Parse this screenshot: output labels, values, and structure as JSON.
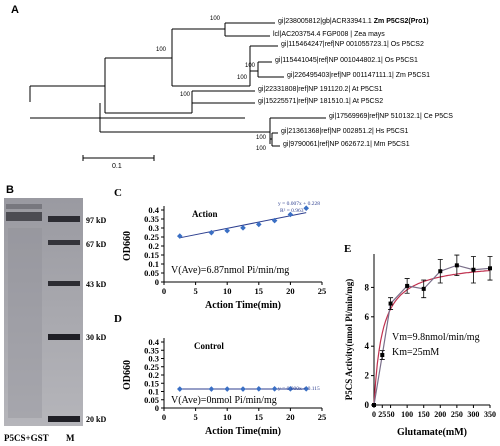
{
  "panel_a": {
    "letter": "A",
    "leaves": [
      {
        "id": "gi|238005812|gb|ACR33941.1 ",
        "name": "Zm P5CS2(Pro1)",
        "bold": true
      },
      {
        "id": "lcl|AC203754.4 FGP008 | ",
        "name": "Zea mays",
        "bold": false
      },
      {
        "id": "gi|115464247|ref|NP 001055723.1| ",
        "name": "Os P5CS2",
        "bold": false
      },
      {
        "id": "gi|115441045|ref|NP 001044802.1| ",
        "name": "Os P5CS1",
        "bold": false
      },
      {
        "id": "gi|226495403|ref|NP 001147111.1| ",
        "name": "Zm P5CS1",
        "bold": false
      },
      {
        "id": "gi|22331808|ref|NP 191120.2| ",
        "name": "At P5CS1",
        "bold": false
      },
      {
        "id": "gi|15225571|ref|NP 181510.1| ",
        "name": "At P5CS2",
        "bold": false
      },
      {
        "id": "gi|17569969|ref|NP 510132.1| ",
        "name": "Ce P5CS",
        "bold": false
      },
      {
        "id": "gi|21361368|ref|NP 002851.2| ",
        "name": "Hs P5CS1",
        "bold": false
      },
      {
        "id": "gi|9790061|ref|NP 062672.1| ",
        "name": "Mm P5CS1",
        "bold": false
      }
    ],
    "bootstraps": [
      "100",
      "100",
      "100",
      "100",
      "100",
      "100",
      "100"
    ],
    "scale_label": "0.1"
  },
  "panel_b": {
    "letter": "B",
    "markers": [
      "97 kD",
      "67 kD",
      "43 kD",
      "30 kD",
      "20 kD"
    ],
    "lane_labels": [
      "P5CS+GST",
      "M"
    ]
  },
  "chart_data": [
    {
      "panel": "C",
      "type": "scatter",
      "title": "Action",
      "xlabel": "Action Time(min)",
      "ylabel": "OD660",
      "xlim": [
        0,
        25
      ],
      "ylim": [
        0,
        0.4
      ],
      "xticks": [
        "0",
        "5",
        "10",
        "15",
        "20",
        "25"
      ],
      "yticks": [
        "0",
        "0.05",
        "0.1",
        "0.15",
        "0.2",
        "0.25",
        "0.3",
        "0.35",
        "0.4"
      ],
      "x": [
        2.5,
        7.5,
        10,
        12.5,
        15,
        17.5,
        20,
        22.5
      ],
      "y": [
        0.255,
        0.274,
        0.285,
        0.301,
        0.32,
        0.341,
        0.375,
        0.41
      ],
      "trendline": {
        "slope": 0.007,
        "intercept": 0.228
      },
      "equation": "y = 0.007x + 0.228",
      "r2": "R² = 0.963",
      "annotation": "V(Ave)=6.87nmol Pi/min/mg"
    },
    {
      "panel": "D",
      "type": "scatter",
      "title": "Control",
      "xlabel": "Action Time(min)",
      "ylabel": "OD660",
      "xlim": [
        0,
        25
      ],
      "ylim": [
        0,
        0.4
      ],
      "xticks": [
        "0",
        "5",
        "10",
        "15",
        "20",
        "25"
      ],
      "yticks": [
        "0",
        "0.05",
        "0.1",
        "0.15",
        "0.2",
        "0.25",
        "0.3",
        "0.35",
        "0.4"
      ],
      "x": [
        2.5,
        7.5,
        10,
        12.5,
        15,
        17.5,
        20,
        22.5
      ],
      "y": [
        0.115,
        0.115,
        0.115,
        0.115,
        0.116,
        0.116,
        0.116,
        0.116
      ],
      "trendline": {
        "slope": 0.0,
        "intercept": 0.115
      },
      "equation": "y = 0.000x + 0.115",
      "annotation": "V(Ave)=0nmol Pi/min/mg"
    },
    {
      "panel": "E",
      "type": "line",
      "xlabel": "Glutamate(mM)",
      "ylabel": "P5CS Activity(nmol Pi/min/mg)",
      "xlim": [
        0,
        350
      ],
      "ylim": [
        0,
        10
      ],
      "xticks": [
        "0",
        "25",
        "50",
        "100",
        "150",
        "200",
        "250",
        "300",
        "350"
      ],
      "yticks": [
        "0",
        "2",
        "4",
        "6",
        "8"
      ],
      "x": [
        0,
        25,
        50,
        100,
        150,
        200,
        250,
        300,
        350
      ],
      "y": [
        0,
        3.4,
        6.9,
        8.1,
        7.9,
        9.1,
        9.5,
        9.2,
        9.3
      ],
      "errors": [
        0,
        0.3,
        0.4,
        0.5,
        0.6,
        0.8,
        0.7,
        0.9,
        0.8
      ],
      "fit": {
        "Vm": 9.8,
        "Km": 25
      },
      "annotation_vm": "Vm=9.8nmol/min/mg",
      "annotation_km": "Km=25mM",
      "colors": {
        "data": "#7a6f8a",
        "fit": "#c0314f"
      }
    }
  ]
}
